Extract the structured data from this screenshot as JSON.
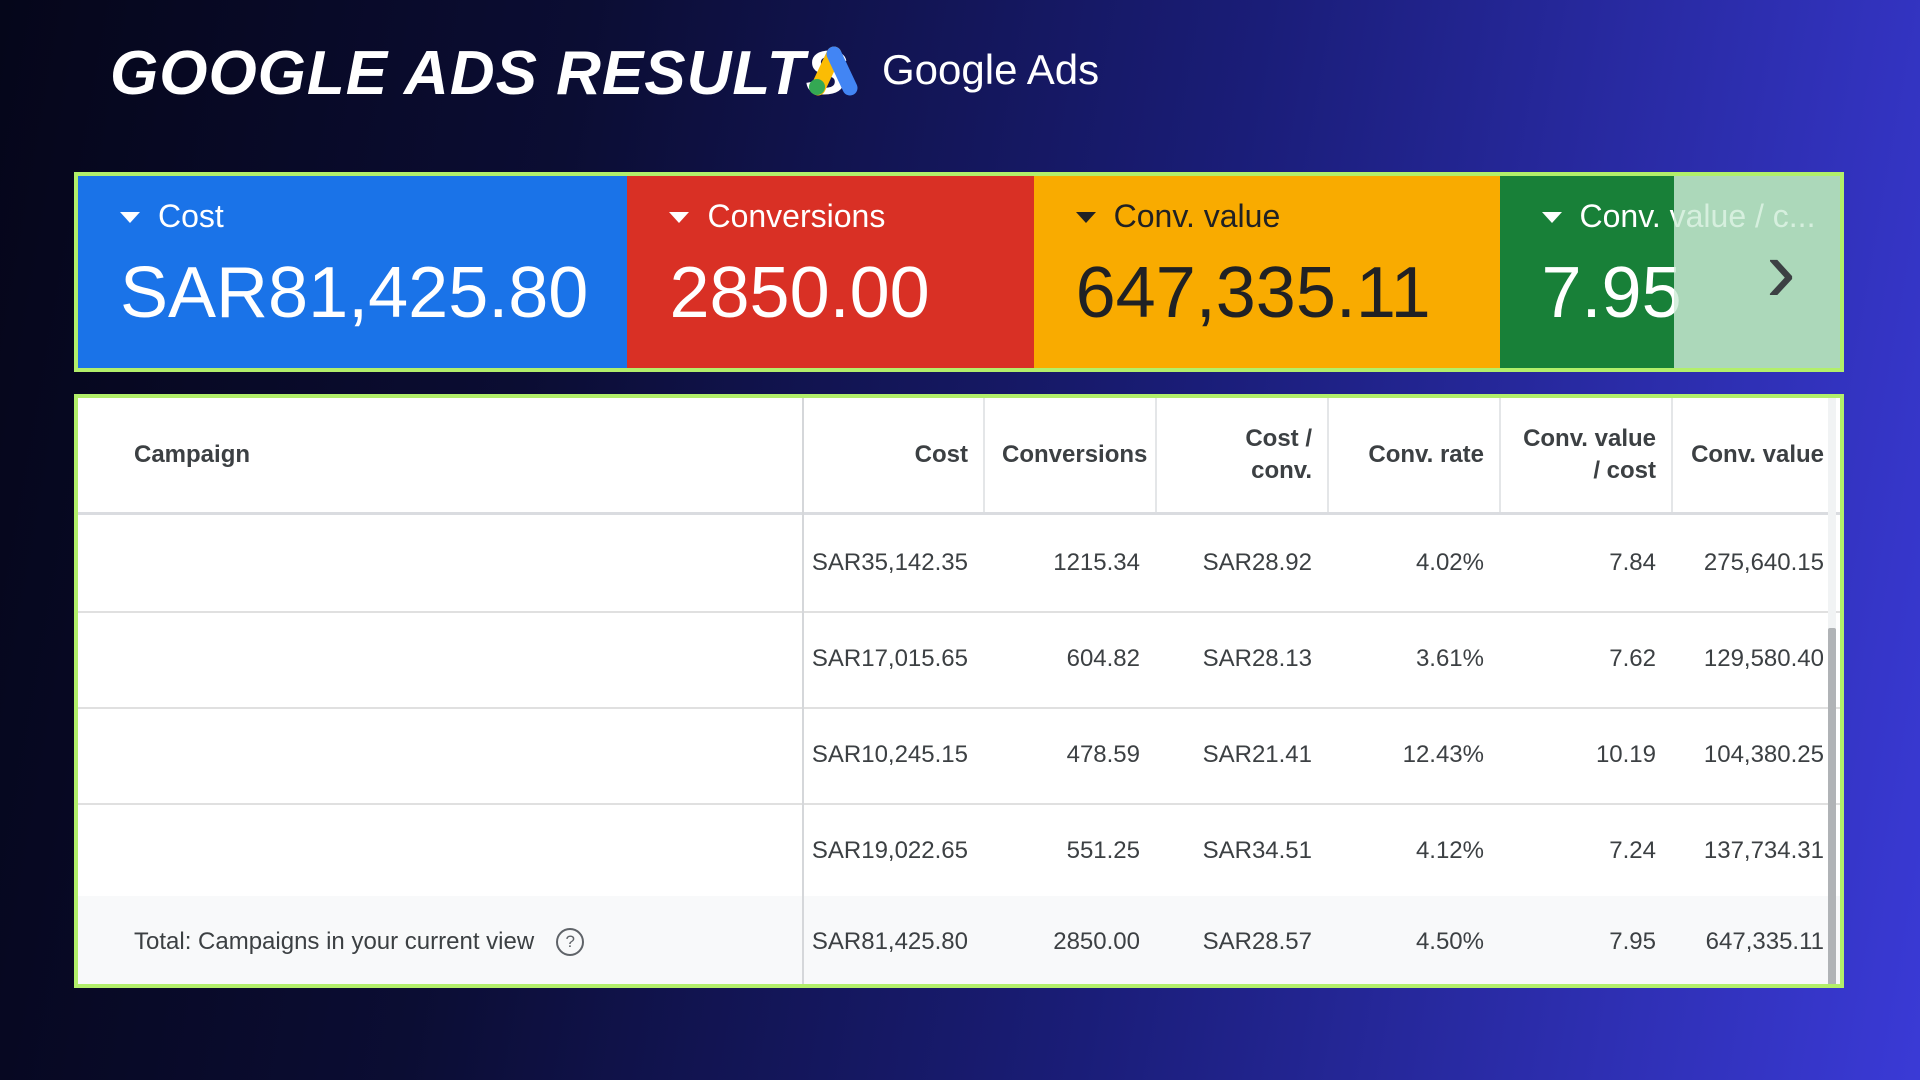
{
  "header": {
    "title": "GOOGLE ADS RESULTS",
    "brand": "Google Ads",
    "brand_icon": "google-ads-logo-icon"
  },
  "metrics": [
    {
      "label": "Cost",
      "value": "SAR81,425.80",
      "color": "#1a73e8"
    },
    {
      "label": "Conversions",
      "value": "2850.00",
      "color": "#d93025"
    },
    {
      "label": "Conv. value",
      "value": "647,335.11",
      "color": "#f9ab00"
    },
    {
      "label": "Conv. value / c...",
      "value": "7.95",
      "color": "#188038"
    }
  ],
  "table": {
    "columns": [
      "Campaign",
      "Cost",
      "Conversions",
      "Cost / conv.",
      "Conv. rate",
      "Conv. value / cost",
      "Conv. value"
    ],
    "rows": [
      [
        "",
        "SAR35,142.35",
        "1215.34",
        "SAR28.92",
        "4.02%",
        "7.84",
        "275,640.15"
      ],
      [
        "",
        "SAR17,015.65",
        "604.82",
        "SAR28.13",
        "3.61%",
        "7.62",
        "129,580.40"
      ],
      [
        "",
        "SAR10,245.15",
        "478.59",
        "SAR21.41",
        "12.43%",
        "10.19",
        "104,380.25"
      ],
      [
        "",
        "SAR19,022.65",
        "551.25",
        "SAR34.51",
        "4.12%",
        "7.24",
        "137,734.31"
      ]
    ],
    "total": {
      "label": "Total: Campaigns in your current view",
      "values": [
        "SAR81,425.80",
        "2850.00",
        "SAR28.57",
        "4.50%",
        "7.95",
        "647,335.11"
      ]
    }
  }
}
